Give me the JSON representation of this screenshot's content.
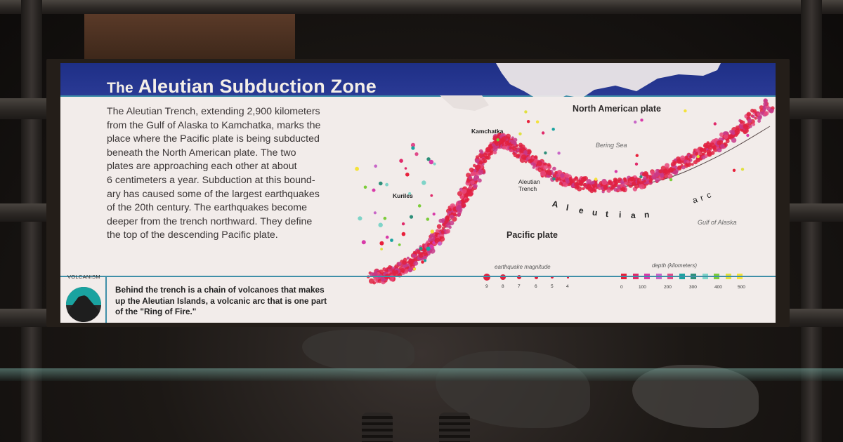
{
  "panel": {
    "title_prefix": "The",
    "title_main": "Aleutian Subduction Zone",
    "body_lines": [
      "The Aleutian Trench, extending 2,900 kilometers",
      "from the Gulf of Alaska to Kamchatka, marks the",
      "place where the Pacific plate is being subducted",
      "beneath the North American plate. The two",
      "plates are approaching each other at about",
      "6 centimeters a year. Subduction at this bound-",
      "ary has caused some of the largest earthquakes",
      "of the 20th century. The earthquakes become",
      "deeper from the trench northward. They define",
      "the top of the descending Pacific plate."
    ],
    "volcanism": {
      "label": "VOLCANISM",
      "lines": [
        "Behind the trench is a chain of volcanoes that makes",
        "up the Aleutian Islands, a volcanic arc that is one part",
        "of the \"Ring of Fire.\""
      ]
    }
  },
  "map": {
    "labels": {
      "north_american_plate": "North American plate",
      "bering_sea": "Bering Sea",
      "kamchatka": "Kamchatka",
      "kuriles": "Kuriles",
      "aleutian_trench": "Aleutian Trench",
      "pacific_plate": "Pacific plate",
      "gulf_of_alaska": "Gulf of Alaska",
      "arc_word_1": [
        "A",
        "l",
        "e",
        "u",
        "t",
        "i",
        "a",
        "n"
      ],
      "arc_word_2": [
        "a",
        "r",
        "c"
      ]
    },
    "legend": {
      "magnitude_title": "earthquake magnitude",
      "magnitudes": [
        "9",
        "8",
        "7",
        "6",
        "5",
        "4"
      ],
      "depth_title": "depth (kilometers)",
      "depths": [
        "0",
        "100",
        "200",
        "300",
        "400",
        "500"
      ],
      "depth_colors": [
        "#e8203a",
        "#e02a6a",
        "#d83aa8",
        "#c866c8",
        "#e04a8a",
        "#1aa3a0",
        "#2f8f7a",
        "#7fd4c8",
        "#7ccc3a",
        "#e0e040",
        "#f4e23a"
      ]
    },
    "colors": {
      "banner": "#1e2f86",
      "accent_line": "#3f8fa8",
      "quake_red": "#e0213f",
      "panel_bg": "#f2ecea"
    }
  }
}
